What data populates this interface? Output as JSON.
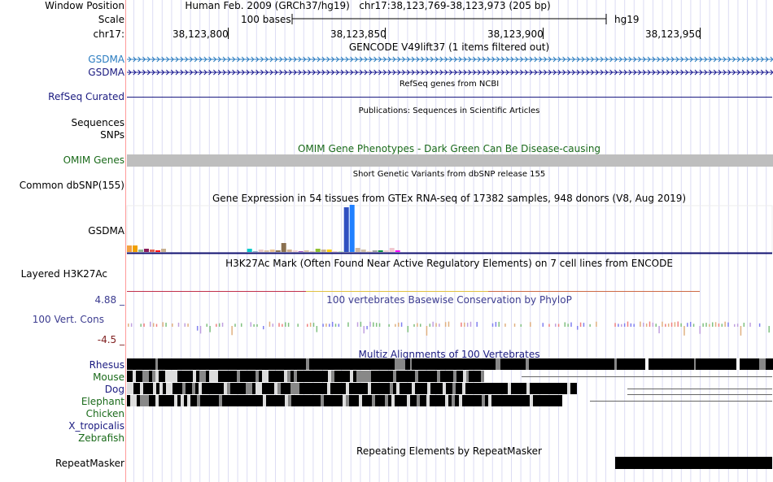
{
  "header": {
    "window_position_label": "Window Position",
    "assembly": "Human Feb. 2009 (GRCh37/hg19)",
    "position": "chr17:38,123,769-38,123,973 (205 bp)",
    "scale_label": "Scale",
    "scale_text": "100 bases",
    "scale_db": "hg19",
    "chrom_label": "chr17:",
    "ticks": [
      "38,123,800",
      "38,123,850",
      "38,123,900",
      "38,123,950"
    ]
  },
  "tracks": {
    "gencode": {
      "title": "GENCODE V49lift37 (1 items filtered out)",
      "items": [
        "GSDMA",
        "GSDMA"
      ]
    },
    "refseq": {
      "title": "RefSeq genes from NCBI",
      "label": "RefSeq Curated"
    },
    "publications": {
      "title": "Publications: Sequences in Scientific Articles",
      "labels": [
        "Sequences",
        "SNPs"
      ]
    },
    "omim": {
      "title": "OMIM Gene Phenotypes - Dark Green Can Be Disease-causing",
      "label": "OMIM Genes"
    },
    "dbsnp": {
      "title": "Short Genetic Variants from dbSNP release 155",
      "label": "Common dbSNP(155)"
    },
    "gtex": {
      "title": "Gene Expression in 54 tissues from GTEx RNA-seq of 17382 samples, 948 donors (V8, Aug 2019)",
      "label": "GSDMA"
    },
    "h3k27ac": {
      "title": "H3K27Ac Mark (Often Found Near Active Regulatory Elements) on 7 cell lines from ENCODE",
      "label": "Layered H3K27Ac"
    },
    "phylop": {
      "title": "100 vertebrates Basewise Conservation by PhyloP",
      "label": "100 Vert. Cons",
      "max": "4.88 _",
      "min": "-4.5 _"
    },
    "multiz": {
      "title": "Multiz Alignments of 100 Vertebrates",
      "species": [
        "Rhesus",
        "Mouse",
        "Dog",
        "Elephant",
        "Chicken",
        "X_tropicalis",
        "Zebrafish"
      ]
    },
    "repeatmasker": {
      "title": "Repeating Elements by RepeatMasker",
      "label": "RepeatMasker"
    }
  },
  "colors": {
    "gencode_light": "#2a7cc0",
    "gencode_dark": "#1a1a90",
    "omim_bar": "#bebebe",
    "h3k27ac_line": "#c0304a",
    "guide": "#dcdcf4",
    "divider": "#ff9a9a"
  },
  "chart_data": {
    "type": "bar",
    "title": "GTEx gene expression (GSDMA)",
    "relative_values": [
      8,
      8,
      3,
      4,
      3,
      2,
      4,
      0,
      0,
      0,
      0,
      0,
      0,
      0,
      4,
      1,
      3,
      2,
      3,
      2,
      11,
      3,
      2,
      1,
      2,
      1,
      4,
      3,
      3,
      1,
      1,
      55,
      58,
      5,
      3,
      1,
      2,
      2,
      2,
      5,
      2
    ],
    "bar_colors": [
      "#f4a040",
      "#f0a000",
      "#90b890",
      "#8a1a5a",
      "#e06050",
      "#ff1010",
      "#c8b090",
      "#fff",
      "#fff",
      "#fff",
      "#fff",
      "#fff",
      "#fff",
      "#fff",
      "#00cccc",
      "#8ab0c8",
      "#e8c8c8",
      "#d8c0a0",
      "#e8c090",
      "#8a7050",
      "#8a7050",
      "#d0b090",
      "#f0d0d0",
      "#a050c0",
      "#d8c0a0",
      "#d8c8b0",
      "#90c030",
      "#c8b090",
      "#ffd000",
      "#f0c8d0",
      "#c0e8c0",
      "#3050c0",
      "#2080ff",
      "#d0b8a0",
      "#d0c0a8",
      "#f0d8c0",
      "#a0a0a0",
      "#009040",
      "#f0d0d0",
      "#f0c8d0",
      "#ff00ff"
    ]
  }
}
